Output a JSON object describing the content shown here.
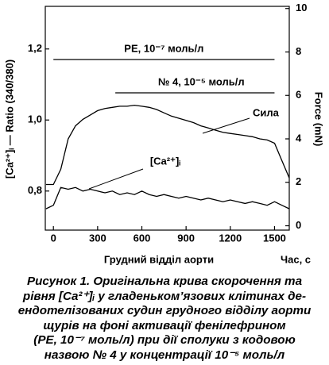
{
  "chart_data": {
    "type": "line",
    "x": [
      -50,
      0,
      50,
      100,
      150,
      200,
      250,
      300,
      350,
      400,
      450,
      500,
      550,
      600,
      650,
      700,
      750,
      800,
      850,
      900,
      950,
      1000,
      1050,
      1100,
      1150,
      1200,
      1250,
      1300,
      1350,
      1400,
      1450,
      1500,
      1550,
      1600
    ],
    "series": [
      {
        "name": "Сила",
        "color": "#000000",
        "axis": "y2",
        "values": [
          1.9,
          1.9,
          2.6,
          4.0,
          4.6,
          4.9,
          5.1,
          5.3,
          5.4,
          5.45,
          5.5,
          5.5,
          5.55,
          5.5,
          5.45,
          5.35,
          5.2,
          5.05,
          4.95,
          4.85,
          4.75,
          4.6,
          4.5,
          4.4,
          4.3,
          4.25,
          4.2,
          4.15,
          4.1,
          4.0,
          3.95,
          3.8,
          3.0,
          2.2
        ]
      },
      {
        "name": "[Ca²⁺]ᵢ",
        "color": "#000000",
        "values": [
          0.75,
          0.76,
          0.81,
          0.805,
          0.81,
          0.8,
          0.805,
          0.8,
          0.795,
          0.8,
          0.79,
          0.795,
          0.79,
          0.8,
          0.79,
          0.785,
          0.79,
          0.785,
          0.78,
          0.785,
          0.78,
          0.775,
          0.78,
          0.775,
          0.77,
          0.775,
          0.77,
          0.765,
          0.77,
          0.765,
          0.76,
          0.77,
          0.76,
          0.75
        ]
      }
    ],
    "xlim": [
      -55,
      1600
    ],
    "xticks": [
      0,
      300,
      600,
      900,
      1200,
      1500
    ],
    "ylim": [
      0.69,
      1.32
    ],
    "yticks": [
      {
        "value": 0.8,
        "label": "0,8"
      },
      {
        "value": 1.0,
        "label": "1,0"
      },
      {
        "value": 1.2,
        "label": "1,2"
      }
    ],
    "y2lim": [
      -0.2,
      10.1
    ],
    "y2ticks": [
      0,
      2,
      4,
      6,
      8,
      10
    ],
    "xlabel": "Грудний відділ аорти",
    "xunit": "Час, с",
    "ylabel": "[Ca²⁺]ᵢ — Ratio (340/380)",
    "y2label": "Force (mN)",
    "periods": [
      {
        "label": "PE, 10⁻⁷ моль/л",
        "x": [
          0,
          1500
        ]
      },
      {
        "label": "№ 4, 10⁻⁵ моль/л",
        "x": [
          420,
          1500
        ]
      }
    ],
    "caption": [
      "Рисунок 1. Оригінальна крива скорочення та",
      "рівня [Ca²⁺]ᵢ у гладеньком’язових клітинах де-",
      "ендотелізованих судин грудного відділу аорти",
      "щурів на фоні активації фенілефрином",
      "(PE, 10⁻⁷ моль/л) при дії сполуки з кодовою",
      "назвою № 4 у концентрації 10⁻⁵ моль/л"
    ]
  }
}
